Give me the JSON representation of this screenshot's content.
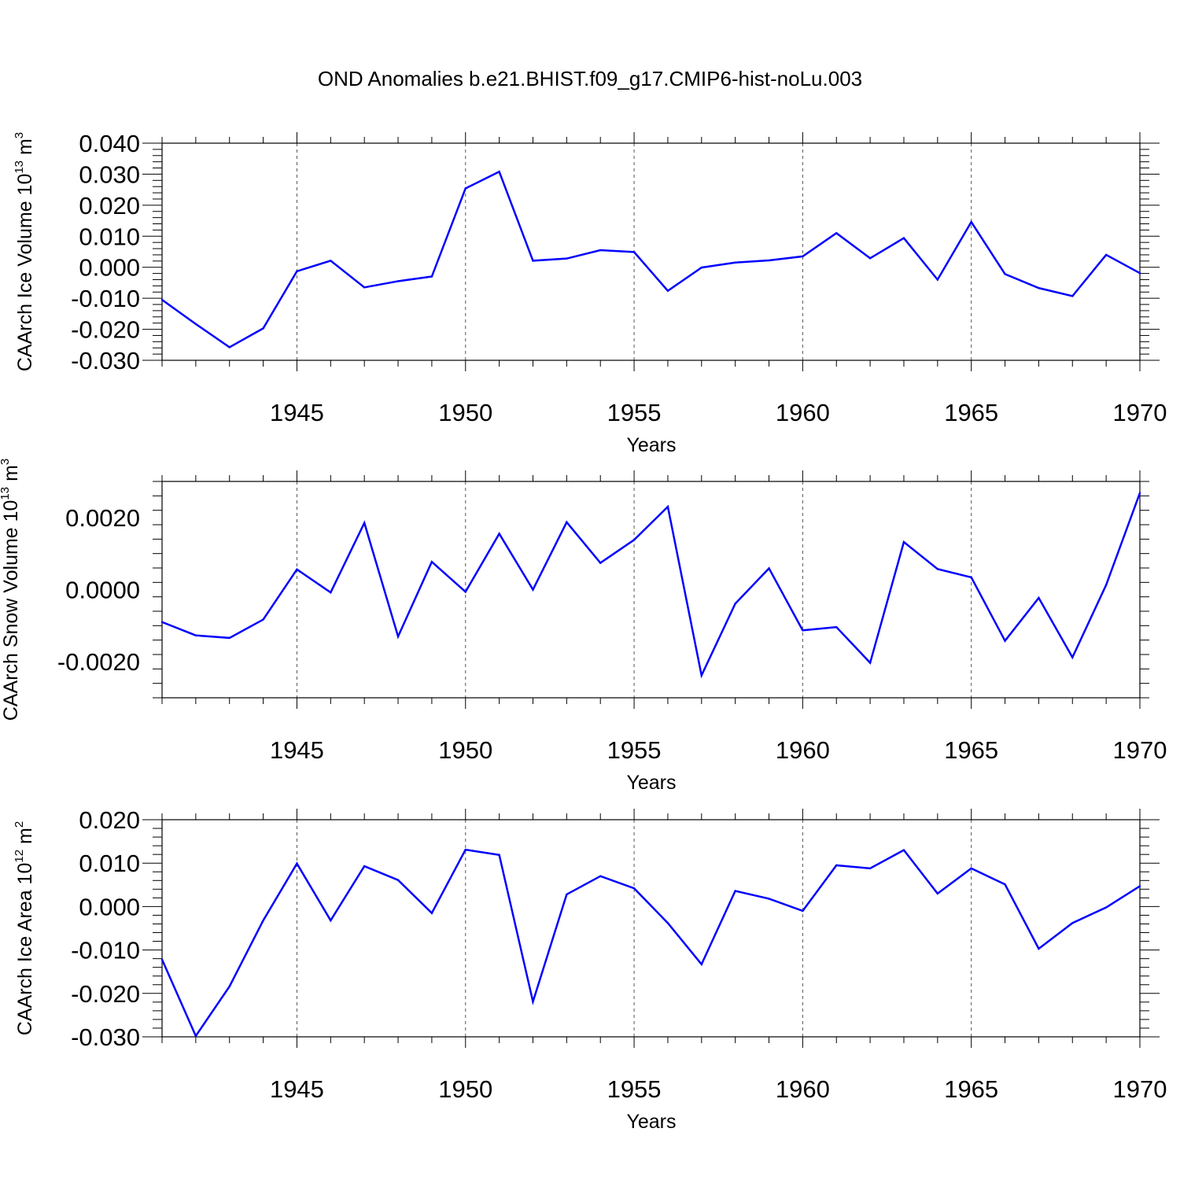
{
  "title": "OND Anomalies b.e21.BHIST.f09_g17.CMIP6-hist-noLu.003",
  "colors": {
    "line": "#0000ff",
    "axis": "#000000",
    "grid": "#555555"
  },
  "chart_data": [
    {
      "type": "line",
      "name": "ice-volume",
      "ylabel": {
        "main": "CAArch Ice Volume 10",
        "exp": "13",
        "unit": " m",
        "unit_exp": "3"
      },
      "xlabel": "Years",
      "xlim": [
        1941,
        1970
      ],
      "ylim": [
        -0.03,
        0.04
      ],
      "yticks": [
        -0.03,
        -0.02,
        -0.01,
        0.0,
        0.01,
        0.02,
        0.03,
        0.04
      ],
      "ytick_labels": [
        "-0.030",
        "-0.020",
        "-0.010",
        "0.000",
        "0.010",
        "0.020",
        "0.030",
        "0.040"
      ],
      "xticks": [
        1945,
        1950,
        1955,
        1960,
        1965,
        1970
      ],
      "xtick_labels": [
        "1945",
        "1950",
        "1955",
        "1960",
        "1965",
        "1970"
      ],
      "x": [
        1941,
        1942,
        1943,
        1944,
        1945,
        1946,
        1947,
        1948,
        1949,
        1950,
        1951,
        1952,
        1953,
        1954,
        1955,
        1956,
        1957,
        1958,
        1959,
        1960,
        1961,
        1962,
        1963,
        1964,
        1965,
        1966,
        1967,
        1968,
        1969,
        1970
      ],
      "values": [
        -0.0105,
        -0.0183,
        -0.0258,
        -0.0197,
        -0.0013,
        0.0021,
        -0.0065,
        -0.0045,
        -0.003,
        0.0254,
        0.0308,
        0.0021,
        0.0028,
        0.0055,
        0.0049,
        -0.0076,
        -0.0001,
        0.0015,
        0.0022,
        0.0035,
        0.011,
        0.0029,
        0.0094,
        -0.004,
        0.0146,
        -0.0022,
        -0.0067,
        -0.0093,
        0.004,
        -0.0019
      ]
    },
    {
      "type": "line",
      "name": "snow-volume",
      "ylabel": {
        "main": "CAArch Snow Volume 10",
        "exp": "13",
        "unit": " m",
        "unit_exp": "3"
      },
      "xlabel": "Years",
      "xlim": [
        1941,
        1970
      ],
      "ylim": [
        -0.003,
        0.003
      ],
      "yticks": [
        -0.002,
        0.0,
        0.002
      ],
      "ytick_labels": [
        "-0.0020",
        "0.0000",
        "0.0020"
      ],
      "xticks": [
        1945,
        1950,
        1955,
        1960,
        1965,
        1970
      ],
      "xtick_labels": [
        "1945",
        "1950",
        "1955",
        "1960",
        "1965",
        "1970"
      ],
      "x": [
        1941,
        1942,
        1943,
        1944,
        1945,
        1946,
        1947,
        1948,
        1949,
        1950,
        1951,
        1952,
        1953,
        1954,
        1955,
        1956,
        1957,
        1958,
        1959,
        1960,
        1961,
        1962,
        1963,
        1964,
        1965,
        1966,
        1967,
        1968,
        1969,
        1970
      ],
      "values": [
        -0.0009,
        -0.00127,
        -0.00134,
        -0.00083,
        0.00056,
        -8e-05,
        0.00185,
        -0.0013,
        0.00077,
        -6e-05,
        0.00155,
        0.0,
        0.00187,
        0.00074,
        0.00138,
        0.0023,
        -0.00238,
        -0.00039,
        0.00059,
        -0.00113,
        -0.00104,
        -0.00203,
        0.00132,
        0.00057,
        0.00034,
        -0.00142,
        -0.00023,
        -0.00188,
        0.00013,
        0.00268
      ]
    },
    {
      "type": "line",
      "name": "ice-area",
      "ylabel": {
        "main": "CAArch Ice Area 10",
        "exp": "12",
        "unit": " m",
        "unit_exp": "2"
      },
      "xlabel": "Years",
      "xlim": [
        1941,
        1970
      ],
      "ylim": [
        -0.03,
        0.02
      ],
      "yticks": [
        -0.03,
        -0.02,
        -0.01,
        0.0,
        0.01,
        0.02
      ],
      "ytick_labels": [
        "-0.030",
        "-0.020",
        "-0.010",
        "0.000",
        "0.010",
        "0.020"
      ],
      "xticks": [
        1945,
        1950,
        1955,
        1960,
        1965,
        1970
      ],
      "xtick_labels": [
        "1945",
        "1950",
        "1955",
        "1960",
        "1965",
        "1970"
      ],
      "x": [
        1941,
        1942,
        1943,
        1944,
        1945,
        1946,
        1947,
        1948,
        1949,
        1950,
        1951,
        1952,
        1953,
        1954,
        1955,
        1956,
        1957,
        1958,
        1959,
        1960,
        1961,
        1962,
        1963,
        1964,
        1965,
        1966,
        1967,
        1968,
        1969,
        1970
      ],
      "values": [
        -0.0122,
        -0.0298,
        -0.0184,
        -0.0032,
        0.0099,
        -0.0032,
        0.0093,
        0.0061,
        -0.0015,
        0.0131,
        0.0119,
        -0.0219,
        0.0028,
        0.007,
        0.0042,
        -0.0038,
        -0.0133,
        0.0036,
        0.0018,
        -0.001,
        0.0095,
        0.0088,
        0.013,
        0.003,
        0.0088,
        0.0051,
        -0.0097,
        -0.0038,
        -0.0002,
        0.0047
      ]
    }
  ]
}
